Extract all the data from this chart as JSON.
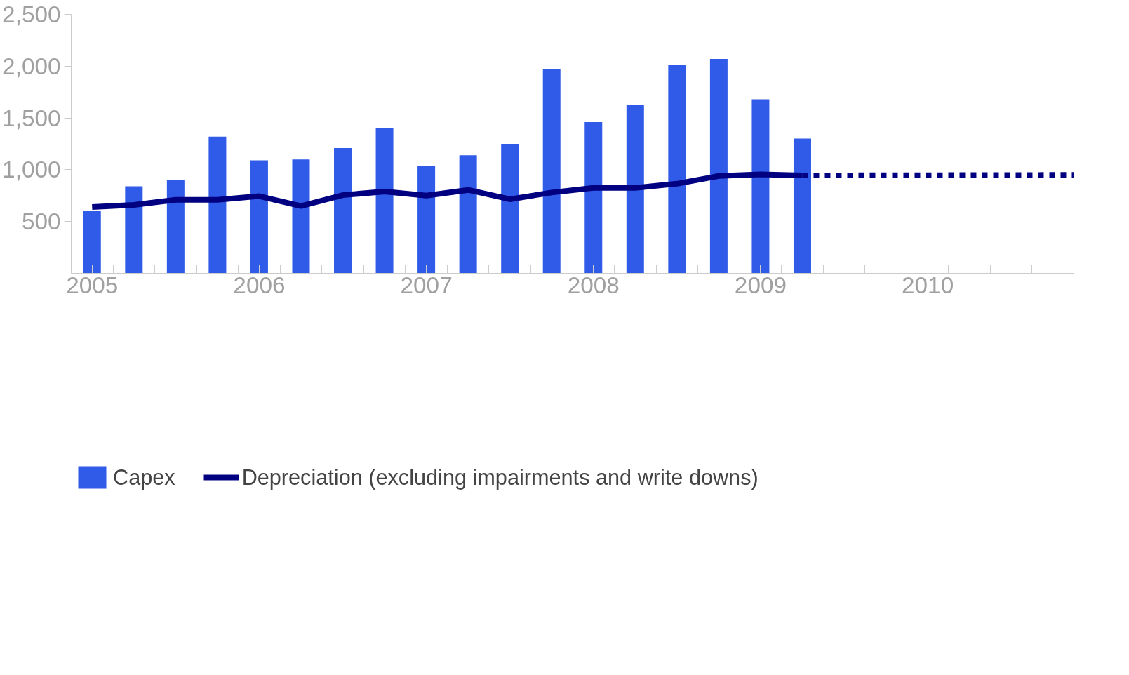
{
  "chart_data": {
    "type": "bar",
    "x": [
      2005.125,
      2005.375,
      2005.625,
      2005.875,
      2006.125,
      2006.375,
      2006.625,
      2006.875,
      2007.125,
      2007.375,
      2007.625,
      2007.875,
      2008.125,
      2008.375,
      2008.625,
      2008.875,
      2009.125,
      2009.375
    ],
    "series": [
      {
        "name": "Capex",
        "color": "#2f5be8",
        "values": [
          600,
          840,
          900,
          1320,
          1090,
          1100,
          1210,
          1400,
          1040,
          1140,
          1250,
          1970,
          1460,
          1630,
          2010,
          2070,
          1680,
          1300
        ]
      },
      {
        "name": "Depreciation (excluding impairments and write downs)",
        "type": "line",
        "color": "#000080",
        "line_style": "solid",
        "values": [
          640,
          660,
          710,
          710,
          745,
          650,
          755,
          790,
          750,
          805,
          715,
          780,
          825,
          825,
          865,
          940,
          955,
          945
        ]
      },
      {
        "type": "line",
        "color": "#000080",
        "line_style": "dotted",
        "x": [
          2009.375,
          2011.0
        ],
        "values": [
          945,
          950
        ]
      }
    ],
    "xlim": [
      2005.0,
      2011.0
    ],
    "xticks": [
      {
        "value": 2005.0,
        "label": null
      },
      {
        "value": 2005.125,
        "label": "2005"
      },
      {
        "value": 2005.25,
        "label": null
      },
      {
        "value": 2005.5,
        "label": null
      },
      {
        "value": 2005.75,
        "label": null
      },
      {
        "value": 2006.0,
        "label": null
      },
      {
        "value": 2006.125,
        "label": "2006"
      },
      {
        "value": 2006.25,
        "label": null
      },
      {
        "value": 2006.5,
        "label": null
      },
      {
        "value": 2006.75,
        "label": null
      },
      {
        "value": 2007.0,
        "label": null
      },
      {
        "value": 2007.125,
        "label": "2007"
      },
      {
        "value": 2007.25,
        "label": null
      },
      {
        "value": 2007.5,
        "label": null
      },
      {
        "value": 2007.75,
        "label": null
      },
      {
        "value": 2008.0,
        "label": null
      },
      {
        "value": 2008.125,
        "label": "2008"
      },
      {
        "value": 2008.25,
        "label": null
      },
      {
        "value": 2008.5,
        "label": null
      },
      {
        "value": 2008.75,
        "label": null
      },
      {
        "value": 2009.0,
        "label": null
      },
      {
        "value": 2009.125,
        "label": "2009"
      },
      {
        "value": 2009.25,
        "label": null
      },
      {
        "value": 2009.5,
        "label": null
      },
      {
        "value": 2009.75,
        "label": null
      },
      {
        "value": 2010.0,
        "label": null
      },
      {
        "value": 2010.125,
        "label": "2010"
      },
      {
        "value": 2010.25,
        "label": null
      },
      {
        "value": 2010.5,
        "label": null
      },
      {
        "value": 2010.75,
        "label": null
      },
      {
        "value": 2011.0,
        "label": null
      }
    ],
    "ylim": [
      0,
      2500
    ],
    "yticks": [
      {
        "value": 500,
        "label": "500"
      },
      {
        "value": 1000,
        "label": "1,000"
      },
      {
        "value": 1500,
        "label": "1,500"
      },
      {
        "value": 2000,
        "label": "2,000"
      },
      {
        "value": 2500,
        "label": "2,500"
      }
    ],
    "grid": false,
    "legend": "bottom"
  }
}
